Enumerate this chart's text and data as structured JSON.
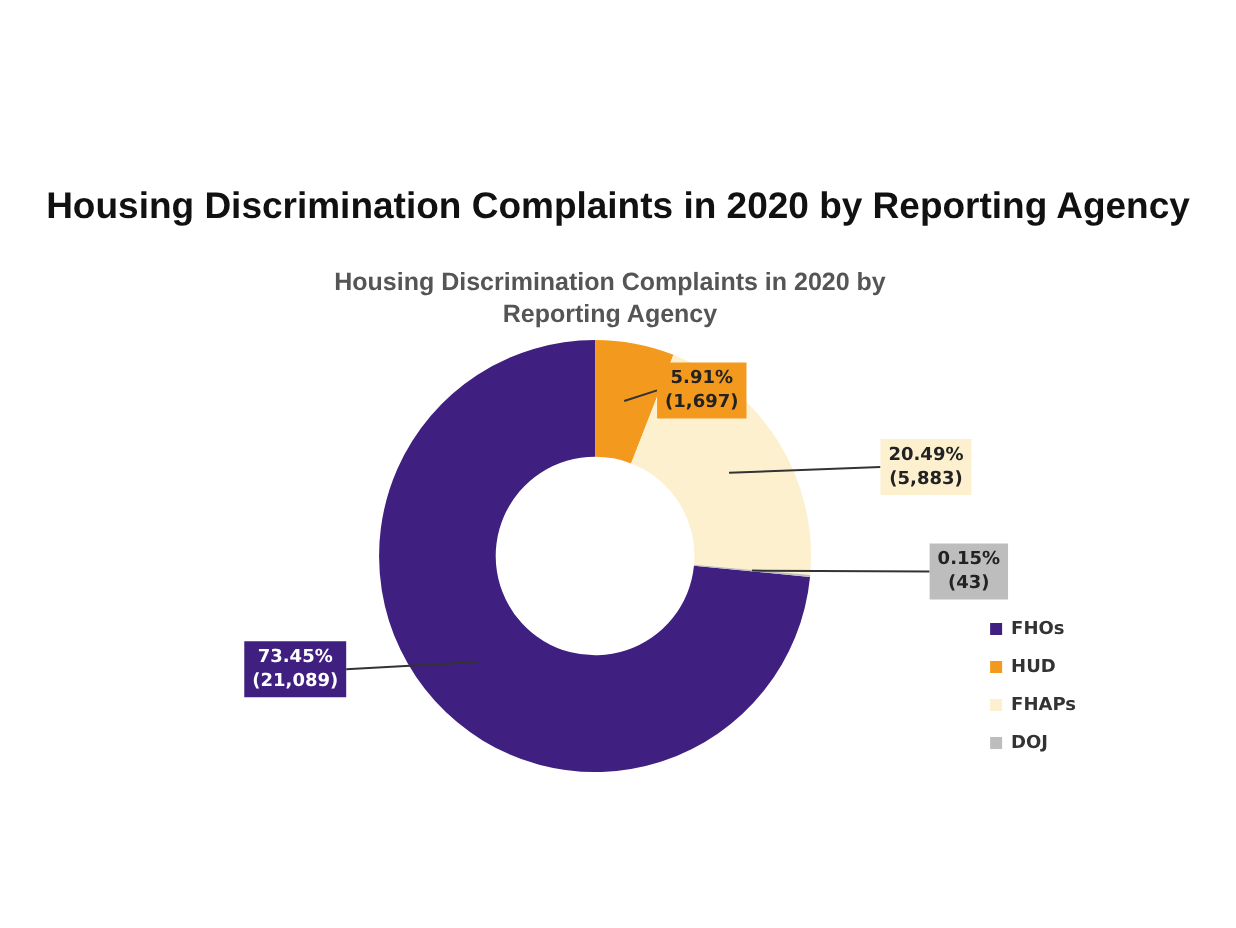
{
  "chart_data": {
    "type": "donut",
    "title": "Housing Discrimination Complaints in 2020 by Reporting Agency",
    "subtitle": "Housing Discrimination Complaints in 2020 by Reporting Agency",
    "categories": [
      "FHOs",
      "HUD",
      "FHAPs",
      "DOJ"
    ],
    "values": [
      21089,
      1697,
      5883,
      43
    ],
    "colors": [
      "#3f1f7f",
      "#f39a1e",
      "#fdf0cf",
      "#bdbdbd"
    ],
    "value_labels": [
      "73.45% (21,089)",
      "5.91% (1,697)",
      "20.49% (5,883)",
      "0.15% (43)"
    ],
    "legend": "bottom right"
  }
}
